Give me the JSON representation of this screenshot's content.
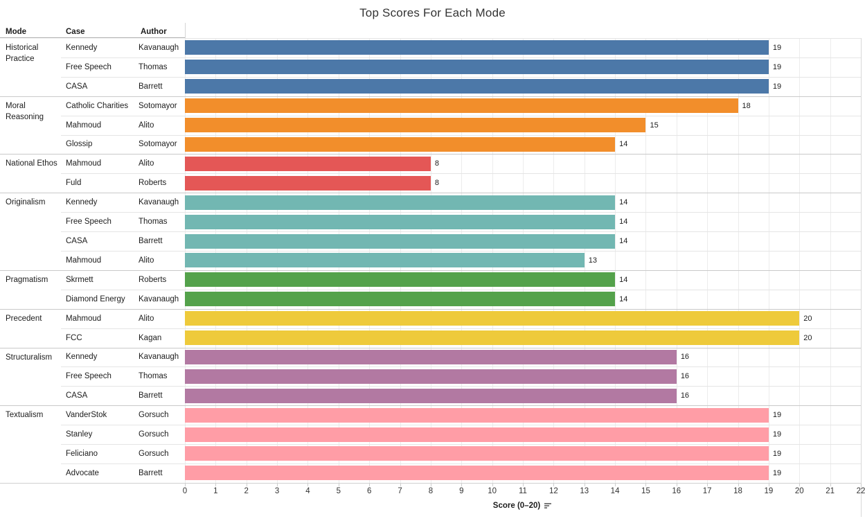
{
  "title": "Top Scores For Each Mode",
  "columns": {
    "mode": "Mode",
    "case": "Case",
    "author": "Author"
  },
  "axis": {
    "label": "Score (0–20)",
    "min": 0,
    "max": 22,
    "ticks": [
      "0",
      "1",
      "2",
      "3",
      "4",
      "5",
      "6",
      "7",
      "8",
      "9",
      "10",
      "11",
      "12",
      "13",
      "14",
      "15",
      "16",
      "17",
      "18",
      "19",
      "20",
      "21",
      "22"
    ]
  },
  "colors": {
    "Historical Practice": "#4c78a8",
    "Moral Reasoning": "#f28e2b",
    "National Ethos": "#e45756",
    "Originalism": "#72b7b2",
    "Pragmatism": "#54a24b",
    "Precedent": "#eeca3b",
    "Structuralism": "#b279a2",
    "Textualism": "#ff9da6"
  },
  "chart_data": {
    "type": "bar",
    "orientation": "horizontal",
    "title": "Top Scores For Each Mode",
    "xlabel": "Score (0–20)",
    "xlim": [
      0,
      22
    ],
    "grid": true,
    "legend": false,
    "rows": [
      {
        "mode": "Historical Practice",
        "case": "Kennedy",
        "author": "Kavanaugh",
        "value": 19
      },
      {
        "mode": "Historical Practice",
        "case": "Free Speech",
        "author": "Thomas",
        "value": 19
      },
      {
        "mode": "Historical Practice",
        "case": "CASA",
        "author": "Barrett",
        "value": 19
      },
      {
        "mode": "Moral Reasoning",
        "case": "Catholic Charities",
        "author": "Sotomayor",
        "value": 18
      },
      {
        "mode": "Moral Reasoning",
        "case": "Mahmoud",
        "author": "Alito",
        "value": 15
      },
      {
        "mode": "Moral Reasoning",
        "case": "Glossip",
        "author": "Sotomayor",
        "value": 14
      },
      {
        "mode": "National Ethos",
        "case": "Mahmoud",
        "author": "Alito",
        "value": 8
      },
      {
        "mode": "National Ethos",
        "case": "Fuld",
        "author": "Roberts",
        "value": 8
      },
      {
        "mode": "Originalism",
        "case": "Kennedy",
        "author": "Kavanaugh",
        "value": 14
      },
      {
        "mode": "Originalism",
        "case": "Free Speech",
        "author": "Thomas",
        "value": 14
      },
      {
        "mode": "Originalism",
        "case": "CASA",
        "author": "Barrett",
        "value": 14
      },
      {
        "mode": "Originalism",
        "case": "Mahmoud",
        "author": "Alito",
        "value": 13
      },
      {
        "mode": "Pragmatism",
        "case": "Skrmett",
        "author": "Roberts",
        "value": 14
      },
      {
        "mode": "Pragmatism",
        "case": "Diamond Energy",
        "author": "Kavanaugh",
        "value": 14
      },
      {
        "mode": "Precedent",
        "case": "Mahmoud",
        "author": "Alito",
        "value": 20
      },
      {
        "mode": "Precedent",
        "case": "FCC",
        "author": "Kagan",
        "value": 20
      },
      {
        "mode": "Structuralism",
        "case": "Kennedy",
        "author": "Kavanaugh",
        "value": 16
      },
      {
        "mode": "Structuralism",
        "case": "Free Speech",
        "author": "Thomas",
        "value": 16
      },
      {
        "mode": "Structuralism",
        "case": "CASA",
        "author": "Barrett",
        "value": 16
      },
      {
        "mode": "Textualism",
        "case": "VanderStok",
        "author": "Gorsuch",
        "value": 19
      },
      {
        "mode": "Textualism",
        "case": "Stanley",
        "author": "Gorsuch",
        "value": 19
      },
      {
        "mode": "Textualism",
        "case": "Feliciano",
        "author": "Gorsuch",
        "value": 19
      },
      {
        "mode": "Textualism",
        "case": "Advocate",
        "author": "Barrett",
        "value": 19
      }
    ]
  }
}
